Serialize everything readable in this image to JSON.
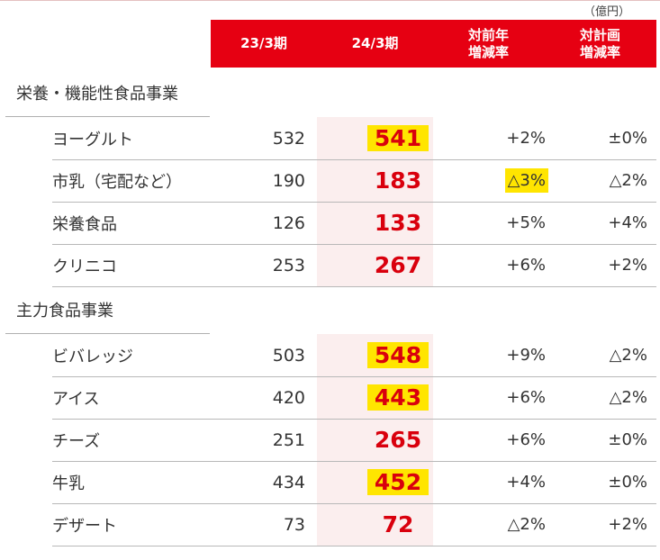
{
  "unit_label": "（億円）",
  "headers": {
    "prev": "23/3期",
    "current": "24/3期",
    "yoy": "対前年\n増減率",
    "plan": "対計画\n増減率"
  },
  "colors": {
    "header_bg": "#e60012",
    "current_value": "#d9000d",
    "highlight": "#ffe500",
    "current_column_bg": "#fbeeee"
  },
  "sections": [
    {
      "title": "栄養・機能性食品事業",
      "rows": [
        {
          "name": "ヨーグルト",
          "prev": "532",
          "current": "541",
          "current_highlight": true,
          "yoy": "+2%",
          "yoy_highlight": false,
          "plan": "±0%"
        },
        {
          "name": "市乳（宅配など）",
          "prev": "190",
          "current": "183",
          "current_highlight": false,
          "yoy": "△3%",
          "yoy_highlight": true,
          "plan": "△2%"
        },
        {
          "name": "栄養食品",
          "prev": "126",
          "current": "133",
          "current_highlight": false,
          "yoy": "+5%",
          "yoy_highlight": false,
          "plan": "+4%"
        },
        {
          "name": "クリニコ",
          "prev": "253",
          "current": "267",
          "current_highlight": false,
          "yoy": "+6%",
          "yoy_highlight": false,
          "plan": "+2%"
        }
      ]
    },
    {
      "title": "主力食品事業",
      "rows": [
        {
          "name": "ビバレッジ",
          "prev": "503",
          "current": "548",
          "current_highlight": true,
          "yoy": "+9%",
          "yoy_highlight": false,
          "plan": "△2%"
        },
        {
          "name": "アイス",
          "prev": "420",
          "current": "443",
          "current_highlight": true,
          "yoy": "+6%",
          "yoy_highlight": false,
          "plan": "△2%"
        },
        {
          "name": "チーズ",
          "prev": "251",
          "current": "265",
          "current_highlight": false,
          "yoy": "+6%",
          "yoy_highlight": false,
          "plan": "±0%"
        },
        {
          "name": "牛乳",
          "prev": "434",
          "current": "452",
          "current_highlight": true,
          "yoy": "+4%",
          "yoy_highlight": false,
          "plan": "±0%"
        },
        {
          "name": "デザート",
          "prev": "73",
          "current": "72",
          "current_highlight": false,
          "yoy": "△2%",
          "yoy_highlight": false,
          "plan": "+2%"
        }
      ]
    }
  ]
}
